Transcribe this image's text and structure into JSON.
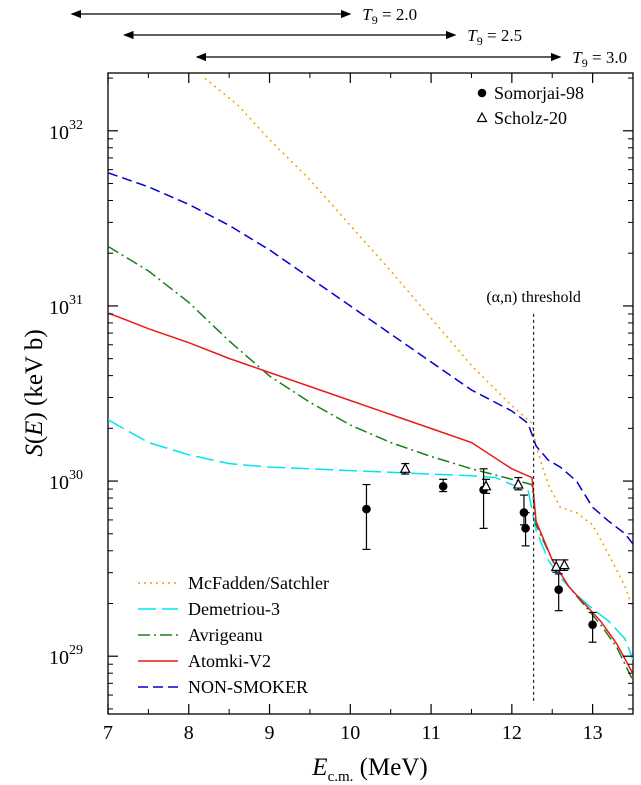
{
  "chart_data": {
    "type": "line",
    "xlabel": "E_c.m. (MeV)",
    "ylabel": "S(E) (keV b)",
    "xlim": [
      7,
      13.5
    ],
    "ylim_log10": [
      28.67,
      32.33
    ],
    "y_scale": "log",
    "x_ticks": [
      7,
      8,
      9,
      10,
      11,
      12,
      13
    ],
    "y_ticks": [
      {
        "exp": 29,
        "base": "10",
        "sup": "29"
      },
      {
        "exp": 30,
        "base": "10",
        "sup": "30"
      },
      {
        "exp": 31,
        "base": "10",
        "sup": "31"
      },
      {
        "exp": 32,
        "base": "10",
        "sup": "32"
      }
    ],
    "legend_placement": "bottom-left",
    "series": [
      {
        "name": "McFadden/Satchler",
        "color": "#f5a000",
        "dash": "2,4",
        "x": [
          8.2,
          8.6,
          9.0,
          9.5,
          10.0,
          10.5,
          11.0,
          11.5,
          12.0,
          12.25,
          12.3,
          12.45,
          12.6,
          12.8,
          13.0,
          13.2,
          13.4,
          13.5
        ],
        "logy": [
          32.3,
          32.15,
          31.95,
          31.72,
          31.46,
          31.2,
          30.93,
          30.66,
          30.43,
          30.33,
          30.2,
          29.98,
          29.85,
          29.82,
          29.75,
          29.58,
          29.4,
          29.27
        ]
      },
      {
        "name": "Demetriou-3",
        "color": "#00e5ee",
        "dash": "18,6",
        "x": [
          7.0,
          7.5,
          8.0,
          8.5,
          9.0,
          9.5,
          10.0,
          10.5,
          11.0,
          11.5,
          11.8,
          12.0,
          12.2,
          12.3,
          12.45,
          12.6,
          12.8,
          13.0,
          13.2,
          13.4,
          13.5
        ],
        "logy": [
          30.35,
          30.22,
          30.15,
          30.1,
          30.08,
          30.07,
          30.06,
          30.05,
          30.04,
          30.03,
          30.02,
          29.98,
          29.95,
          29.72,
          29.55,
          29.45,
          29.35,
          29.27,
          29.2,
          29.1,
          28.98
        ]
      },
      {
        "name": "Avrigeanu",
        "color": "#1a7f1a",
        "dash": "12,4,2,4",
        "x": [
          7.0,
          7.5,
          8.0,
          8.5,
          9.0,
          9.5,
          10.0,
          10.5,
          11.0,
          11.5,
          12.0,
          12.25,
          12.3,
          12.5,
          12.7,
          12.9,
          13.1,
          13.3,
          13.5
        ],
        "logy": [
          31.34,
          31.2,
          31.02,
          30.8,
          30.6,
          30.45,
          30.32,
          30.22,
          30.14,
          30.07,
          30.01,
          29.98,
          29.75,
          29.55,
          29.4,
          29.29,
          29.18,
          29.05,
          28.86
        ]
      },
      {
        "name": "Atomki-V2",
        "color": "#e81a1a",
        "dash": "",
        "x": [
          7.0,
          7.5,
          8.0,
          8.5,
          9.0,
          9.5,
          10.0,
          10.5,
          11.0,
          11.5,
          12.0,
          12.25,
          12.3,
          12.5,
          12.7,
          12.9,
          13.1,
          13.3,
          13.5
        ],
        "logy": [
          30.96,
          30.87,
          30.79,
          30.7,
          30.62,
          30.54,
          30.46,
          30.38,
          30.3,
          30.22,
          30.07,
          30.02,
          29.77,
          29.55,
          29.4,
          29.3,
          29.2,
          29.07,
          28.9
        ]
      },
      {
        "name": "NON-SMOKER",
        "color": "#0000cc",
        "dash": "10,5",
        "x": [
          7.0,
          7.5,
          8.0,
          8.5,
          9.0,
          9.5,
          10.0,
          10.5,
          11.0,
          11.5,
          12.0,
          12.2,
          12.3,
          12.45,
          12.6,
          12.8,
          13.0,
          13.2,
          13.4,
          13.5
        ],
        "logy": [
          31.76,
          31.68,
          31.58,
          31.46,
          31.32,
          31.16,
          31.0,
          30.84,
          30.68,
          30.52,
          30.4,
          30.33,
          30.2,
          30.12,
          30.08,
          30.0,
          29.85,
          29.77,
          29.7,
          29.64
        ]
      }
    ],
    "datasets": [
      {
        "name": "Somorjai-98",
        "marker": "filled-circle",
        "points": [
          {
            "x": 10.2,
            "logy": 29.84,
            "lo": 29.61,
            "hi": 29.98
          },
          {
            "x": 11.15,
            "logy": 29.97,
            "lo": 29.94,
            "hi": 30.01
          },
          {
            "x": 11.65,
            "logy": 29.95,
            "lo": 29.73,
            "hi": 30.07
          },
          {
            "x": 12.15,
            "logy": 29.82,
            "lo": 29.75,
            "hi": 29.92
          },
          {
            "x": 12.17,
            "logy": 29.73,
            "lo": 29.63,
            "hi": 29.82
          },
          {
            "x": 12.58,
            "logy": 29.38,
            "lo": 29.26,
            "hi": 29.47
          },
          {
            "x": 13.0,
            "logy": 29.18,
            "lo": 29.08,
            "hi": 29.25
          }
        ]
      },
      {
        "name": "Scholz-20",
        "marker": "open-triangle",
        "points": [
          {
            "x": 10.68,
            "logy": 30.07,
            "lo": 30.04,
            "hi": 30.1
          },
          {
            "x": 11.68,
            "logy": 29.97,
            "lo": 29.93,
            "hi": 30.01
          },
          {
            "x": 12.08,
            "logy": 29.98,
            "lo": 29.95,
            "hi": 30.02
          },
          {
            "x": 12.55,
            "logy": 29.51,
            "lo": 29.48,
            "hi": 29.55
          },
          {
            "x": 12.65,
            "logy": 29.52,
            "lo": 29.49,
            "hi": 29.55
          }
        ]
      }
    ],
    "threshold": {
      "x": 12.27,
      "label": "(α,n) threshold"
    },
    "temperature_ranges": [
      {
        "label_sym": "T",
        "label_sub": "9",
        "label_val": " = 2.0",
        "x_start": 6.55,
        "x_end": 10.0
      },
      {
        "label_sym": "T",
        "label_sub": "9",
        "label_val": " = 2.5",
        "x_start": 7.2,
        "x_end": 11.3
      },
      {
        "label_sym": "T",
        "label_sub": "9",
        "label_val": " = 3.0",
        "x_start": 8.1,
        "x_end": 12.6
      }
    ]
  }
}
